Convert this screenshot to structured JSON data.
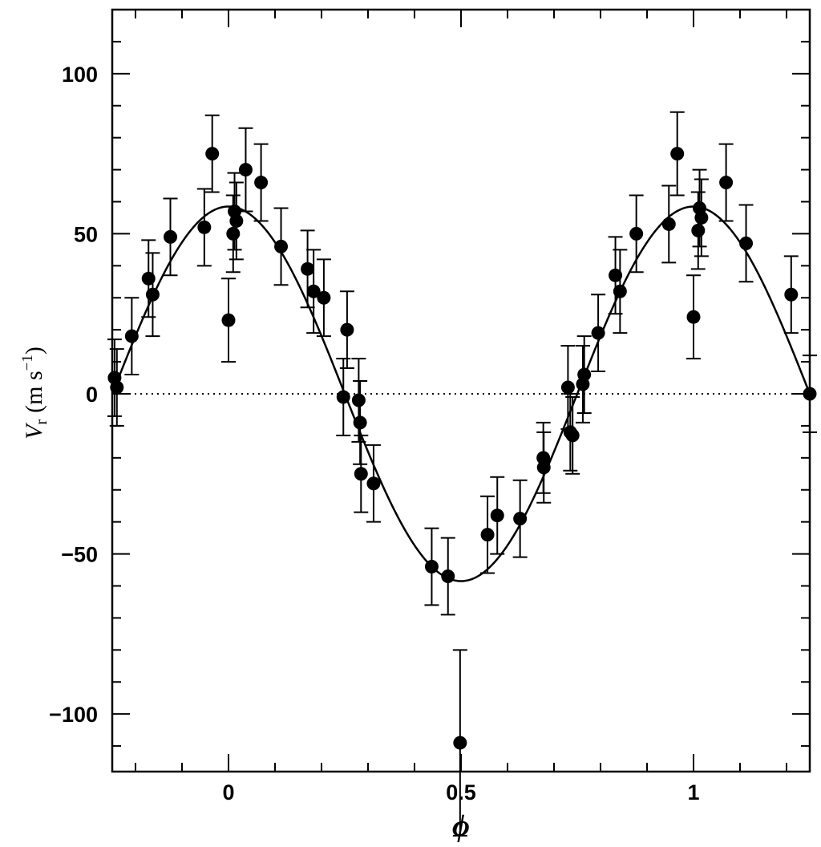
{
  "chart_data": {
    "type": "scatter",
    "title": "",
    "xlabel": "ϕ",
    "ylabel": {
      "main": "V",
      "sub": "r",
      "unit": "(m s",
      "unit_sup": "−1",
      "unit_close": ")"
    },
    "xlim": [
      -0.25,
      1.25
    ],
    "ylim": [
      -118,
      120
    ],
    "x_ticks": [
      0,
      0.5,
      1
    ],
    "x_tick_labels": [
      "0",
      "0.5",
      "1"
    ],
    "y_ticks": [
      100,
      50,
      0,
      -50,
      -100
    ],
    "y_tick_labels": [
      "100",
      "50",
      "0",
      "−50",
      "−100"
    ],
    "grid": false,
    "reference_line": {
      "y": 0,
      "style": "dotted"
    },
    "fit_curve": {
      "type": "sinusoid",
      "amplitude": 58.5,
      "max_phase": 1.0,
      "period": 1.0
    },
    "series": [
      {
        "points": [
          {
            "x": -0.245,
            "y": 5,
            "err": 12
          },
          {
            "x": -0.24,
            "y": 2,
            "err": 12
          },
          {
            "x": -0.208,
            "y": 18,
            "err": 12
          },
          {
            "x": -0.172,
            "y": 36,
            "err": 12
          },
          {
            "x": -0.163,
            "y": 31,
            "err": 13
          },
          {
            "x": -0.125,
            "y": 49,
            "err": 12
          },
          {
            "x": -0.052,
            "y": 52,
            "err": 12
          },
          {
            "x": -0.035,
            "y": 75,
            "err": 12
          },
          {
            "x": 0.0,
            "y": 23,
            "err": 13
          },
          {
            "x": 0.01,
            "y": 50,
            "err": 12
          },
          {
            "x": 0.013,
            "y": 57,
            "err": 12
          },
          {
            "x": 0.017,
            "y": 54,
            "err": 12
          },
          {
            "x": 0.037,
            "y": 70,
            "err": 13
          },
          {
            "x": 0.07,
            "y": 66,
            "err": 12
          },
          {
            "x": 0.113,
            "y": 46,
            "err": 12
          },
          {
            "x": 0.17,
            "y": 39,
            "err": 12
          },
          {
            "x": 0.183,
            "y": 32,
            "err": 13
          },
          {
            "x": 0.205,
            "y": 30,
            "err": 12
          },
          {
            "x": 0.247,
            "y": -1,
            "err": 12
          },
          {
            "x": 0.255,
            "y": 20,
            "err": 12
          },
          {
            "x": 0.28,
            "y": -2,
            "err": 13
          },
          {
            "x": 0.283,
            "y": -9,
            "err": 13
          },
          {
            "x": 0.285,
            "y": -25,
            "err": 12
          },
          {
            "x": 0.312,
            "y": -28,
            "err": 12
          },
          {
            "x": 0.437,
            "y": -54,
            "err": 12
          },
          {
            "x": 0.472,
            "y": -57,
            "err": 12
          },
          {
            "x": 0.498,
            "y": -109,
            "err": 29
          },
          {
            "x": 0.557,
            "y": -44,
            "err": 12
          },
          {
            "x": 0.578,
            "y": -38,
            "err": 12
          },
          {
            "x": 0.627,
            "y": -39,
            "err": 12
          },
          {
            "x": 0.677,
            "y": -20,
            "err": 11
          },
          {
            "x": 0.678,
            "y": -23,
            "err": 11
          },
          {
            "x": 0.73,
            "y": 2,
            "err": 13
          },
          {
            "x": 0.735,
            "y": -12,
            "err": 12
          },
          {
            "x": 0.74,
            "y": -13,
            "err": 12
          },
          {
            "x": 0.762,
            "y": 3,
            "err": 12
          },
          {
            "x": 0.765,
            "y": 6,
            "err": 12
          },
          {
            "x": 0.795,
            "y": 19,
            "err": 12
          },
          {
            "x": 0.832,
            "y": 37,
            "err": 12
          },
          {
            "x": 0.842,
            "y": 32,
            "err": 13
          },
          {
            "x": 0.877,
            "y": 50,
            "err": 12
          },
          {
            "x": 0.947,
            "y": 53,
            "err": 12
          },
          {
            "x": 0.965,
            "y": 75,
            "err": 13
          },
          {
            "x": 1.0,
            "y": 24,
            "err": 13
          },
          {
            "x": 1.01,
            "y": 51,
            "err": 12
          },
          {
            "x": 1.013,
            "y": 58,
            "err": 12
          },
          {
            "x": 1.017,
            "y": 55,
            "err": 12
          },
          {
            "x": 1.07,
            "y": 66,
            "err": 12
          },
          {
            "x": 1.113,
            "y": 47,
            "err": 12
          },
          {
            "x": 1.21,
            "y": 31,
            "err": 12
          },
          {
            "x": 1.25,
            "y": 0,
            "err": 12
          }
        ]
      }
    ]
  }
}
